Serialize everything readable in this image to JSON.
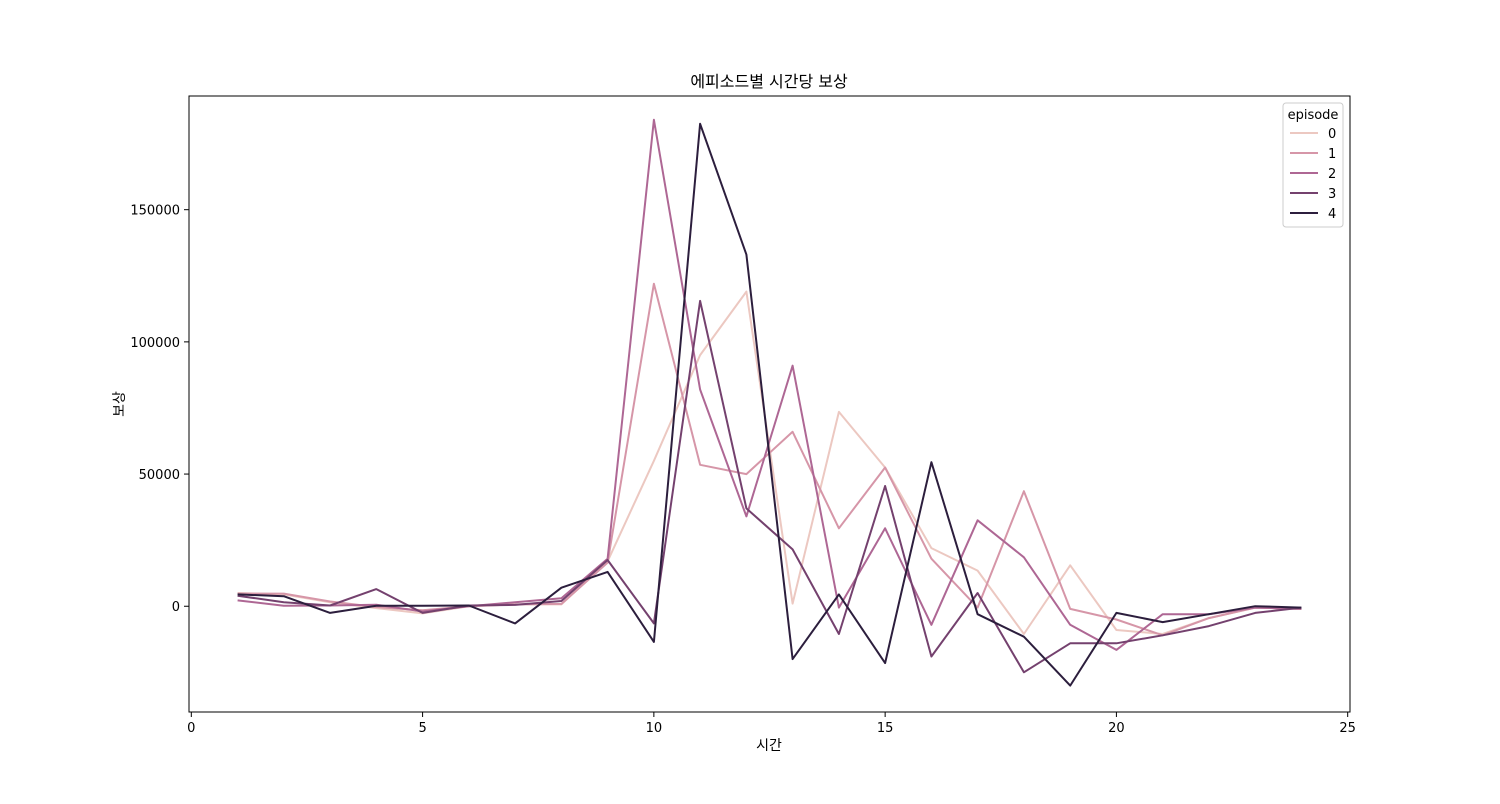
{
  "chart_data": {
    "type": "line",
    "title": "에피소드별 시간당 보상",
    "xlabel": "시간",
    "ylabel": "보상",
    "xlim": [
      -0.05,
      25.05
    ],
    "ylim": [
      -40000,
      193000
    ],
    "xticks": [
      0,
      5,
      10,
      15,
      20,
      25
    ],
    "xtick_labels": [
      "0",
      "5",
      "10",
      "15",
      "20",
      "25"
    ],
    "yticks": [
      0,
      50000,
      100000,
      150000
    ],
    "ytick_labels": [
      "0",
      "50000",
      "100000",
      "150000"
    ],
    "grid": false,
    "legend": {
      "title": "episode",
      "placement": "top-right"
    },
    "x": [
      1,
      2,
      3,
      4,
      5,
      6,
      7,
      8,
      9,
      10,
      11,
      12,
      13,
      14,
      15,
      16,
      17,
      18,
      19,
      20,
      21,
      22,
      23,
      24
    ],
    "series": [
      {
        "name": "0",
        "color": "#ecc8c1",
        "values": [
          5000,
          4500,
          1500,
          -700,
          -2700,
          0,
          700,
          700,
          17000,
          55000,
          95000,
          119000,
          1000,
          73500,
          52500,
          22000,
          13500,
          -10500,
          15500,
          -9000,
          -10500,
          -4500,
          -500,
          -1000
        ]
      },
      {
        "name": "1",
        "color": "#d696a8",
        "values": [
          4800,
          4800,
          1800,
          -300,
          -1500,
          0,
          700,
          900,
          16500,
          122000,
          53500,
          50000,
          66000,
          29500,
          52500,
          18000,
          -500,
          43500,
          -1000,
          -5000,
          -11000,
          -4500,
          -500,
          -1000
        ]
      },
      {
        "name": "2",
        "color": "#ae6794",
        "values": [
          2200,
          200,
          300,
          600,
          -2000,
          0,
          1500,
          3000,
          18000,
          184000,
          82000,
          34000,
          91000,
          -500,
          29500,
          -7000,
          32500,
          18500,
          -7000,
          -16500,
          -3000,
          -3000,
          -500,
          -1000
        ]
      },
      {
        "name": "3",
        "color": "#74416e",
        "values": [
          4000,
          1500,
          300,
          6500,
          -2500,
          300,
          500,
          2000,
          17500,
          -6500,
          115500,
          37000,
          21500,
          -10500,
          45500,
          -19000,
          5000,
          -25000,
          -14000,
          -14000,
          -11000,
          -7500,
          -2500,
          -500
        ]
      },
      {
        "name": "4",
        "color": "#2c1e3d",
        "values": [
          4500,
          3800,
          -2500,
          200,
          200,
          300,
          -6500,
          7000,
          13000,
          -13500,
          182500,
          133000,
          -20000,
          4500,
          -21500,
          54500,
          -3000,
          -11500,
          -30000,
          -2500,
          -6000,
          -3000,
          0,
          -500
        ]
      }
    ]
  }
}
